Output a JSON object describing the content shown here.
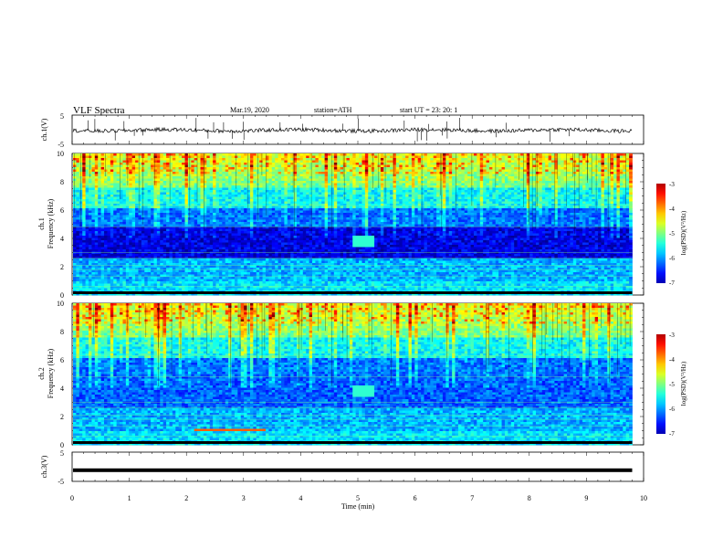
{
  "header": {
    "title": "VLF  Spectra",
    "date": "Mar.19, 2020",
    "station": "station=ATH",
    "start": "start  UT  =    23: 20: 1"
  },
  "chart_data": [
    {
      "type": "line",
      "ylabel": "ch.1(V)",
      "ylim": [
        -5,
        5
      ],
      "yticks": [
        "5",
        "-5"
      ],
      "xlim": [
        0,
        10
      ],
      "x_end": 9.8,
      "baseline": -0.2,
      "color": "#000000"
    },
    {
      "type": "heatmap",
      "ylabel_lines": [
        "ch.1",
        "Frequency (kHz)"
      ],
      "ylim": [
        0,
        10
      ],
      "yticks": [
        "10",
        "8",
        "6",
        "4",
        "2",
        "0"
      ],
      "xlim": [
        0,
        10
      ],
      "x_end": 9.8,
      "colorbar": {
        "label": "log(PSD)(V²/Hz)",
        "ticks": [
          "-3",
          "-4",
          "-5",
          "-6",
          "-7"
        ],
        "range": [
          -7,
          -3
        ]
      }
    },
    {
      "type": "heatmap",
      "ylabel_lines": [
        "ch.2",
        "Frequency (kHz)"
      ],
      "ylim": [
        0,
        10
      ],
      "yticks": [
        "10",
        "8",
        "6",
        "4",
        "2",
        "0"
      ],
      "xlim": [
        0,
        10
      ],
      "x_end": 9.8,
      "colorbar": {
        "label": "log(PSD)(V²/Hz)",
        "ticks": [
          "-3",
          "-4",
          "-5",
          "-6",
          "-7"
        ],
        "range": [
          -7,
          -3
        ]
      }
    },
    {
      "type": "line",
      "ylabel": "ch.3(V)",
      "ylim": [
        -5,
        5
      ],
      "yticks": [
        "5",
        "-5"
      ],
      "xlim": [
        0,
        10
      ],
      "x_end": 9.8,
      "baseline": -1.2,
      "color": "#000000"
    }
  ],
  "xaxis": {
    "label": "Time  (min)",
    "ticks": [
      "0",
      "1",
      "2",
      "3",
      "4",
      "5",
      "6",
      "7",
      "8",
      "9",
      "10"
    ]
  }
}
